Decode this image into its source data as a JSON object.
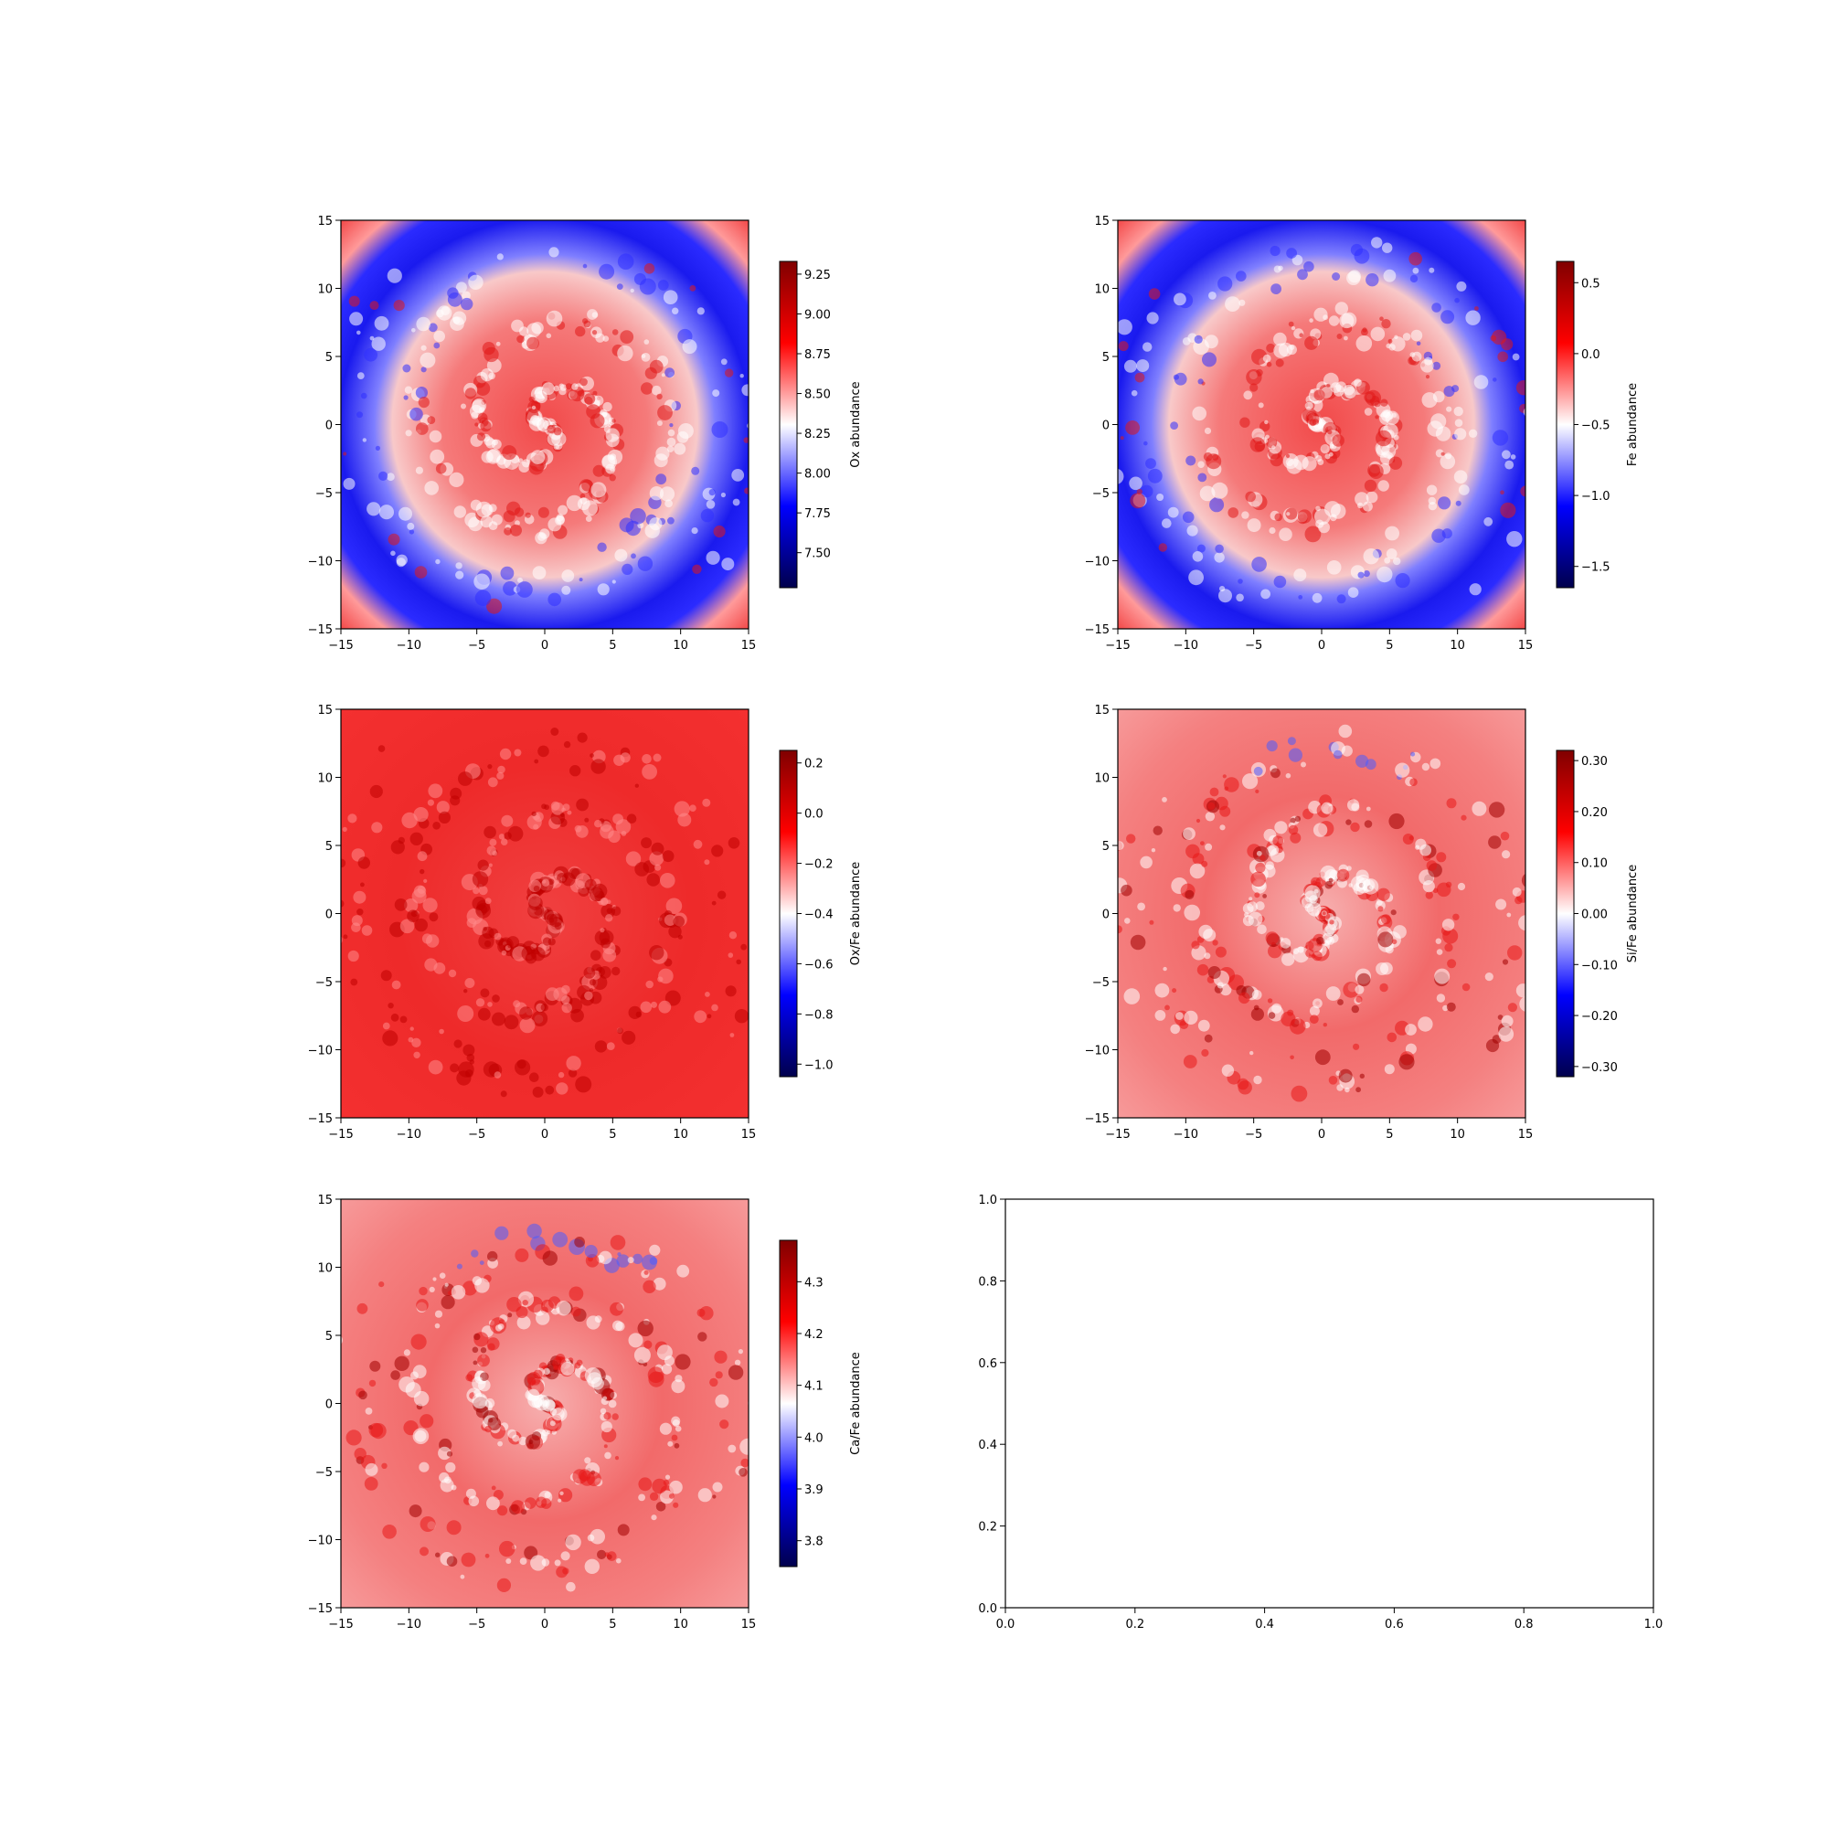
{
  "chart_data": [
    {
      "type": "heatmap",
      "colorbar_label": "Ox abundance",
      "x_range": [
        -15,
        15
      ],
      "y_range": [
        -15,
        15
      ],
      "x_ticks": [
        -15,
        -10,
        -5,
        0,
        5,
        10,
        15
      ],
      "y_ticks": [
        -15,
        -10,
        -5,
        0,
        5,
        10,
        15
      ],
      "clim": [
        7.28,
        9.33
      ],
      "colorbar_ticks": [
        7.5,
        7.75,
        8.0,
        8.25,
        8.5,
        8.75,
        9.0,
        9.25
      ],
      "colormap": "seismic",
      "pattern": "high-center-low-ring"
    },
    {
      "type": "heatmap",
      "colorbar_label": "Fe abundance",
      "x_range": [
        -15,
        15
      ],
      "y_range": [
        -15,
        15
      ],
      "x_ticks": [
        -15,
        -10,
        -5,
        0,
        5,
        10,
        15
      ],
      "y_ticks": [
        -15,
        -10,
        -5,
        0,
        5,
        10,
        15
      ],
      "clim": [
        -1.65,
        0.65
      ],
      "colorbar_ticks": [
        -1.5,
        -1.0,
        -0.5,
        0.0,
        0.5
      ],
      "colormap": "seismic",
      "pattern": "high-center-low-ring"
    },
    {
      "type": "heatmap",
      "colorbar_label": "Ox/Fe abundance",
      "x_range": [
        -15,
        15
      ],
      "y_range": [
        -15,
        15
      ],
      "x_ticks": [
        -15,
        -10,
        -5,
        0,
        5,
        10,
        15
      ],
      "y_ticks": [
        -15,
        -10,
        -5,
        0,
        5,
        10,
        15
      ],
      "clim": [
        -1.05,
        0.25
      ],
      "colorbar_ticks": [
        -1.0,
        -0.8,
        -0.6,
        -0.4,
        -0.2,
        0.0,
        0.2
      ],
      "colormap": "seismic",
      "pattern": "uniform-red"
    },
    {
      "type": "heatmap",
      "colorbar_label": "Si/Fe abundance",
      "x_range": [
        -15,
        15
      ],
      "y_range": [
        -15,
        15
      ],
      "x_ticks": [
        -15,
        -10,
        -5,
        0,
        5,
        10,
        15
      ],
      "y_ticks": [
        -15,
        -10,
        -5,
        0,
        5,
        10,
        15
      ],
      "clim": [
        -0.32,
        0.32
      ],
      "colorbar_ticks": [
        -0.3,
        -0.2,
        -0.1,
        0.0,
        0.1,
        0.2,
        0.3
      ],
      "colormap": "seismic",
      "pattern": "light-red-mottled"
    },
    {
      "type": "heatmap",
      "colorbar_label": "Ca/Fe abundance",
      "x_range": [
        -15,
        15
      ],
      "y_range": [
        -15,
        15
      ],
      "x_ticks": [
        -15,
        -10,
        -5,
        0,
        5,
        10,
        15
      ],
      "y_ticks": [
        -15,
        -10,
        -5,
        0,
        5,
        10,
        15
      ],
      "clim": [
        3.75,
        4.38
      ],
      "colorbar_ticks": [
        3.8,
        3.9,
        4.0,
        4.1,
        4.2,
        4.3
      ],
      "colormap": "seismic",
      "pattern": "light-red-mottled"
    },
    {
      "type": "scatter",
      "empty": true,
      "x_range": [
        0,
        1
      ],
      "y_range": [
        0,
        1
      ],
      "x_ticks": [
        "0.0",
        "0.2",
        "0.4",
        "0.6",
        "0.8",
        "1.0"
      ],
      "y_ticks": [
        "0.0",
        "0.2",
        "0.4",
        "0.6",
        "0.8",
        "1.0"
      ]
    }
  ]
}
